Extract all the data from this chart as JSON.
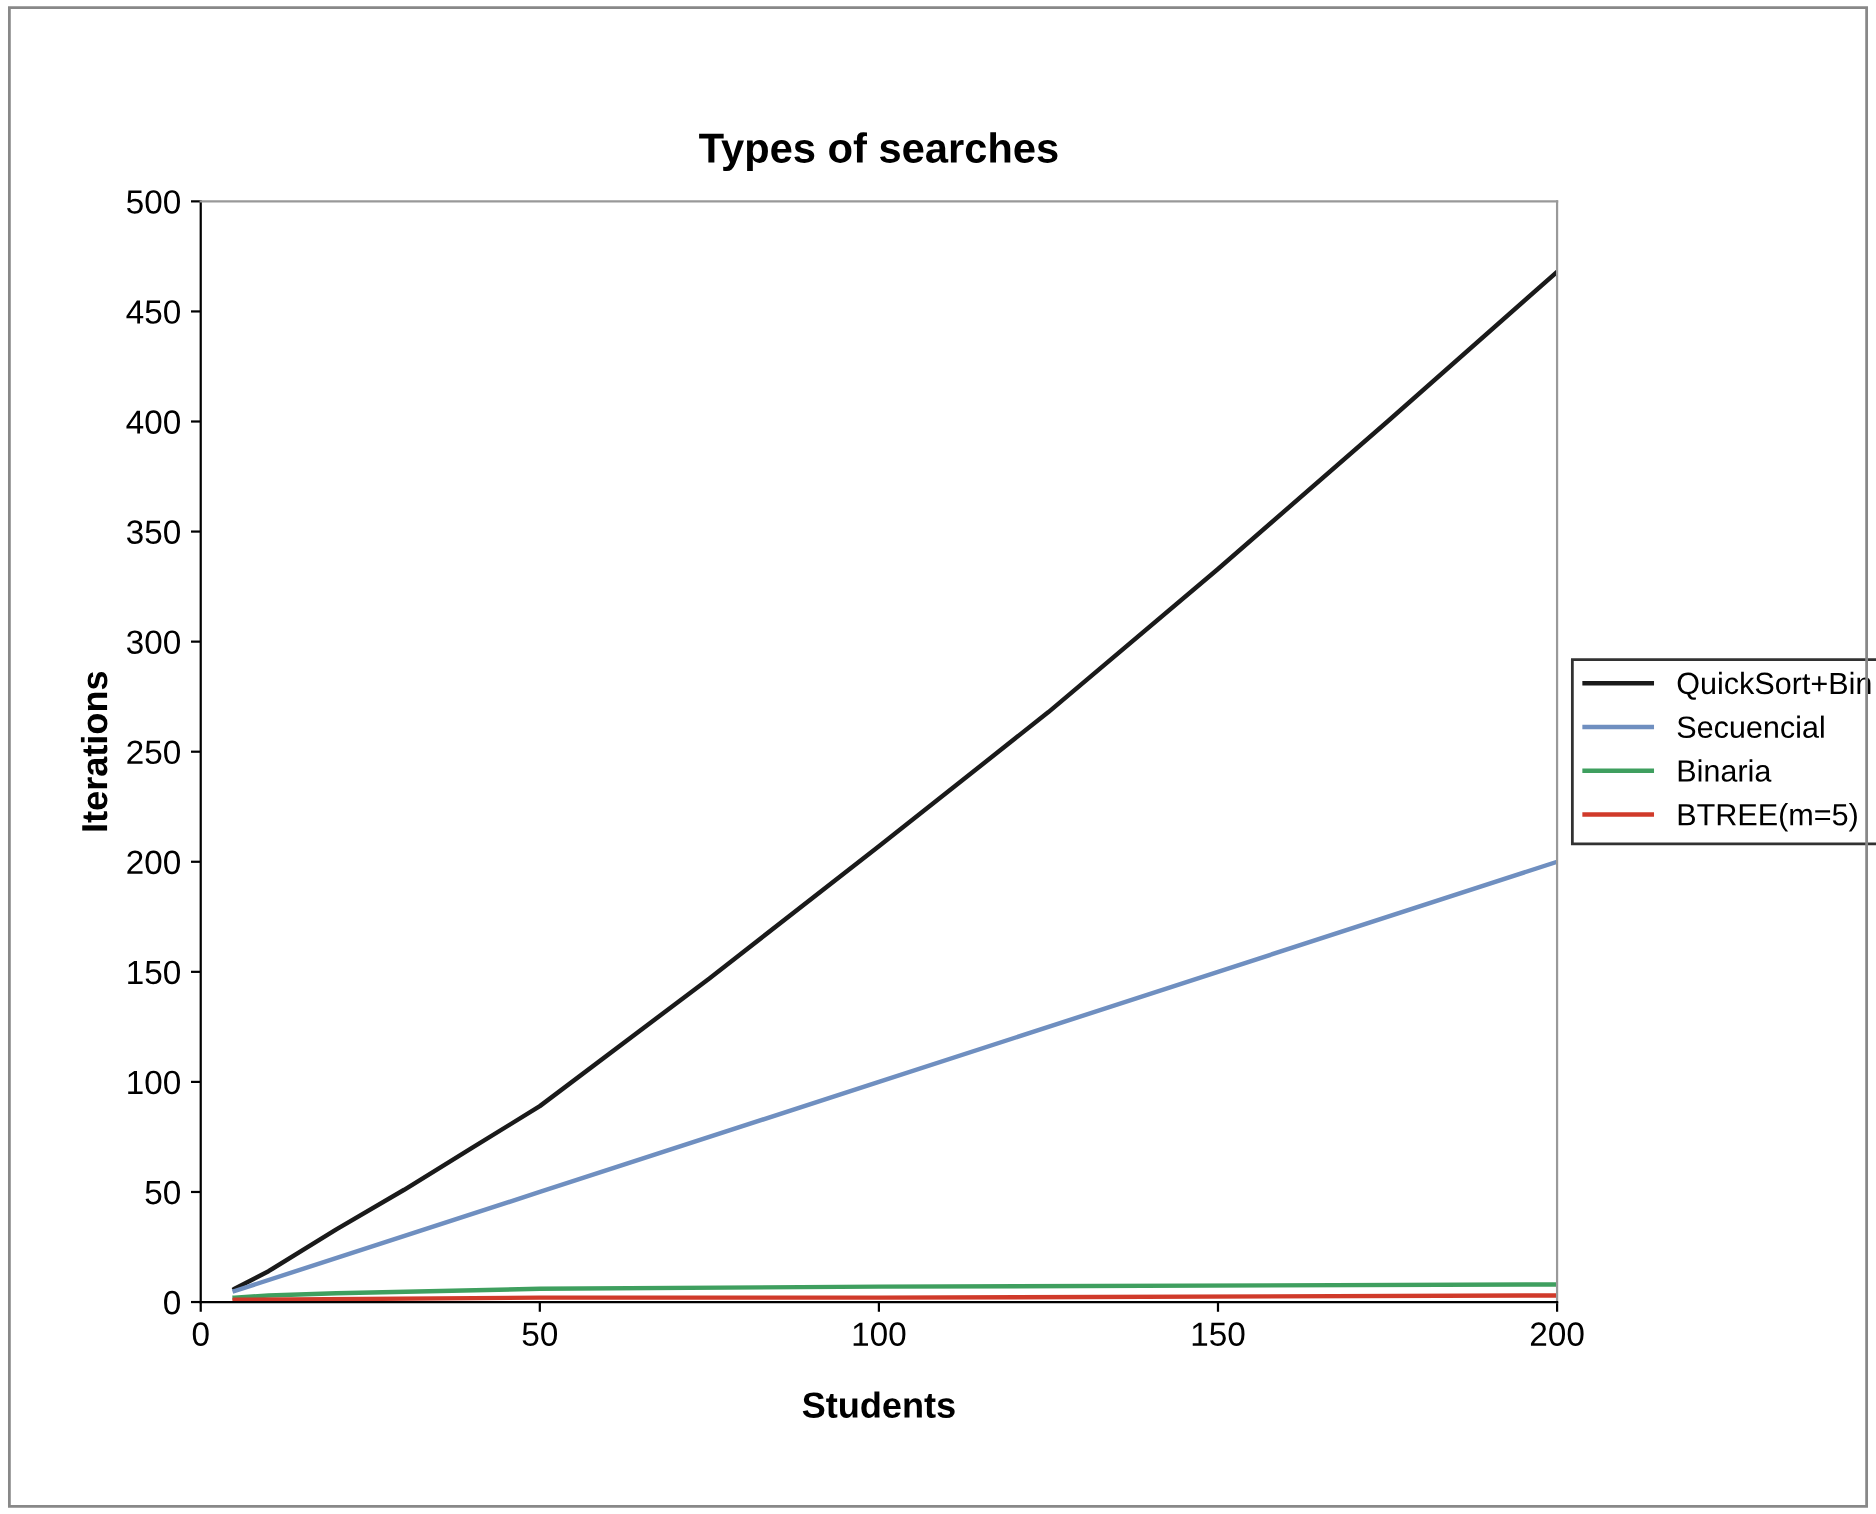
{
  "chart_data": {
    "type": "line",
    "title": "Types of searches",
    "xlabel": "Students",
    "ylabel": "Iterations",
    "xlim": [
      0,
      200
    ],
    "xticks": [
      0,
      50,
      100,
      150,
      200
    ],
    "ylim": [
      0,
      500
    ],
    "yticks": [
      0,
      50,
      100,
      150,
      200,
      250,
      300,
      350,
      400,
      450,
      500
    ],
    "grid": false,
    "legend": "right",
    "marker": "none",
    "line_style": "solid",
    "series": [
      {
        "name": "QuickSort+Bin",
        "color": "#1a1a1a",
        "x": [
          5,
          10,
          20,
          30,
          40,
          50,
          75,
          100,
          125,
          150,
          175,
          200
        ],
        "values": [
          6,
          14,
          33,
          51,
          70,
          89,
          147,
          207,
          268,
          333,
          400,
          468
        ]
      },
      {
        "name": "Secuencial",
        "color": "#6f8fc0",
        "x": [
          5,
          50,
          100,
          150,
          200
        ],
        "values": [
          5,
          50,
          100,
          150,
          200
        ]
      },
      {
        "name": "Binaria",
        "color": "#3f9f5f",
        "x": [
          5,
          10,
          20,
          50,
          100,
          200
        ],
        "values": [
          2,
          3,
          4,
          6,
          7,
          8
        ]
      },
      {
        "name": "BTREE(m=5)",
        "color": "#d03a2a",
        "x": [
          5,
          50,
          100,
          200
        ],
        "values": [
          1,
          2,
          2,
          3
        ]
      }
    ]
  }
}
